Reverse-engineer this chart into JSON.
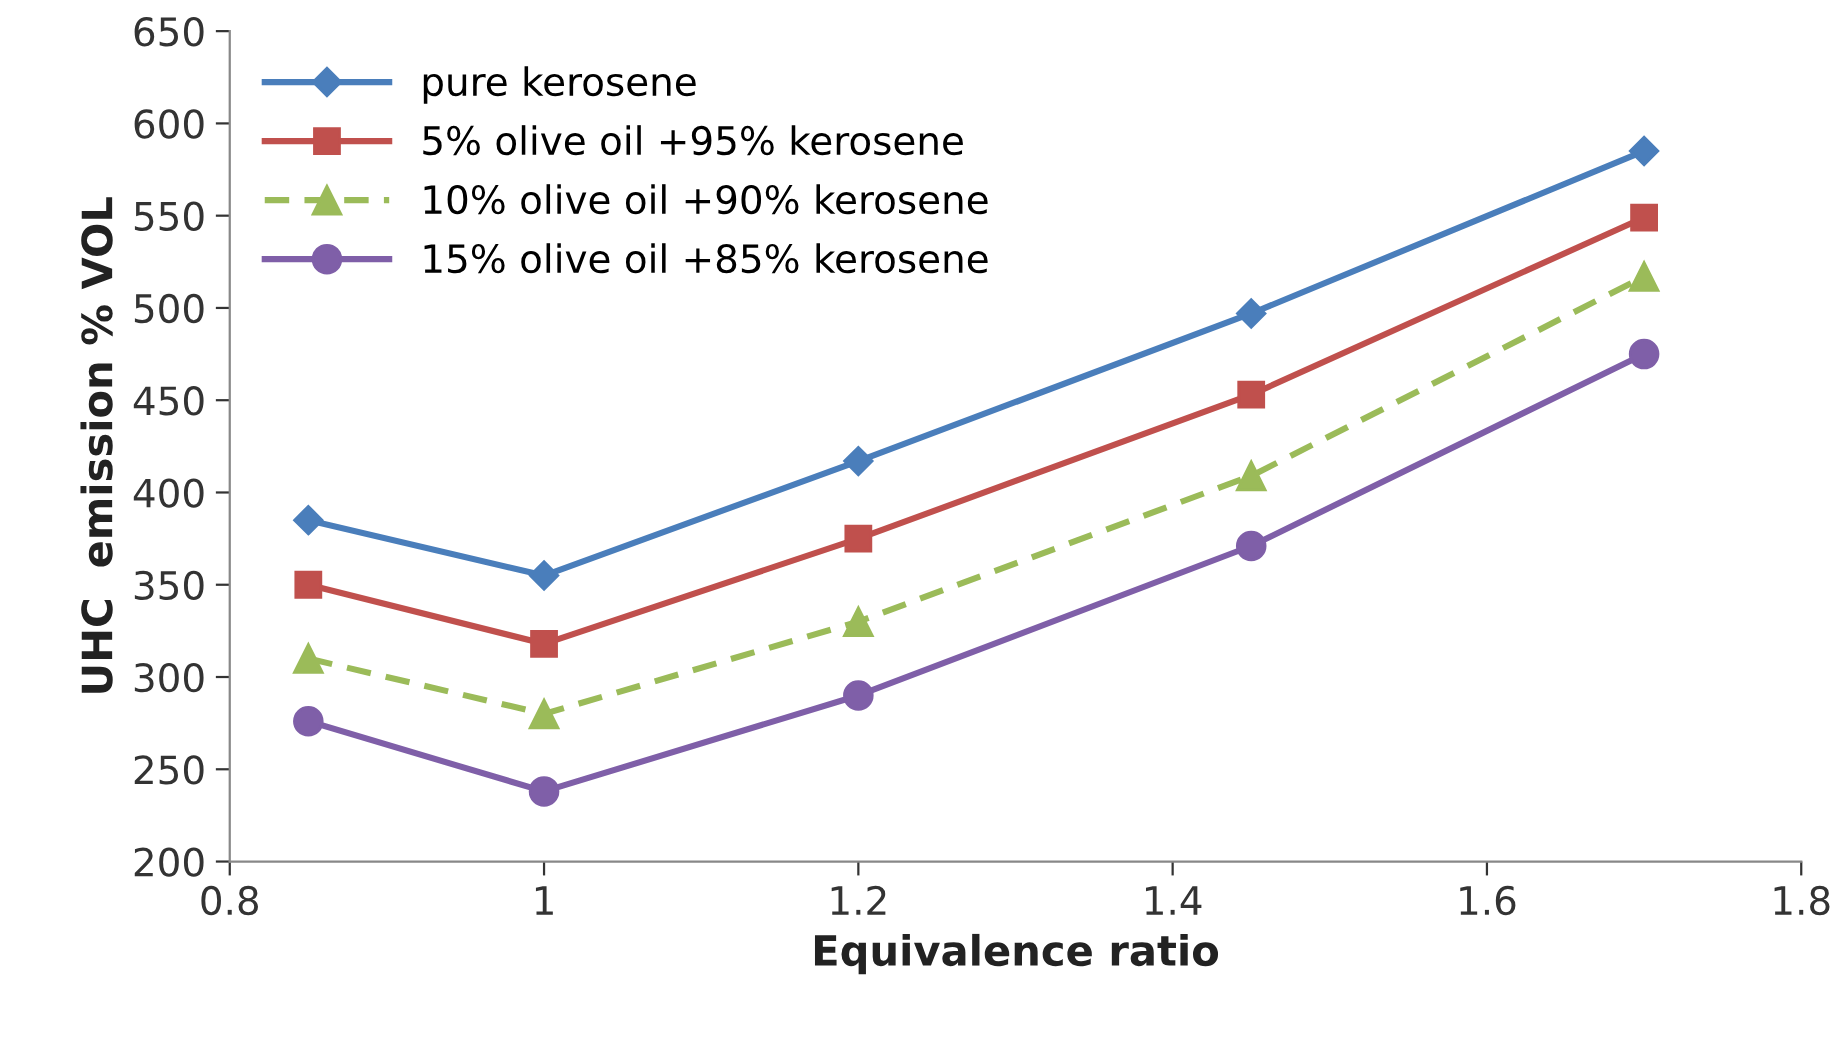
{
  "chart_data": {
    "type": "line",
    "xlabel": "Equivalence ratio",
    "ylabel": "UHC  emission % VOL",
    "x": [
      0.85,
      1,
      1.2,
      1.45,
      1.7
    ],
    "series": [
      {
        "name": "pure kerosene",
        "color": "#4a7ebb",
        "marker": "diamond",
        "line_style": "solid",
        "values": [
          385,
          355,
          417,
          497,
          585
        ]
      },
      {
        "name": "5% olive oil +95% kerosene",
        "color": "#c0504d",
        "marker": "square",
        "line_style": "solid",
        "values": [
          350,
          318,
          375,
          453,
          549
        ]
      },
      {
        "name": "10% olive oil +90% kerosene",
        "color": "#9bbb59",
        "marker": "triangle",
        "line_style": "dashed",
        "values": [
          310,
          280,
          330,
          409,
          517
        ]
      },
      {
        "name": "15% olive oil +85% kerosene",
        "color": "#7f5fa8",
        "marker": "circle",
        "line_style": "solid",
        "values": [
          276,
          238,
          290,
          371,
          475
        ]
      }
    ],
    "xlim": [
      0.8,
      1.8
    ],
    "xticks": [
      0.8,
      1,
      1.2,
      1.4,
      1.6,
      1.8
    ],
    "ylim": [
      200,
      650
    ],
    "yticks": [
      200,
      250,
      300,
      350,
      400,
      450,
      500,
      550,
      600,
      650
    ],
    "grid": false,
    "legend": "top left"
  }
}
